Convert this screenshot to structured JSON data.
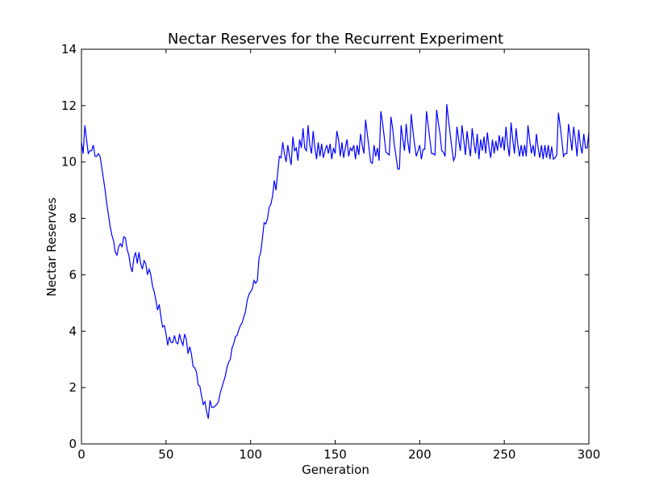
{
  "chart_data": {
    "type": "line",
    "title": "Nectar Reserves for the Recurrent Experiment",
    "xlabel": "Generation",
    "ylabel": "Nectar Reserves",
    "color": "#0000ff",
    "xlim": [
      0,
      300
    ],
    "ylim": [
      0,
      14
    ],
    "xticks": [
      0,
      50,
      100,
      150,
      200,
      250,
      300
    ],
    "yticks": [
      0,
      2,
      4,
      6,
      8,
      10,
      12,
      14
    ],
    "x": [
      0,
      1,
      2,
      3,
      4,
      5,
      6,
      7,
      8,
      9,
      10,
      11,
      12,
      13,
      14,
      15,
      16,
      17,
      18,
      19,
      20,
      21,
      22,
      23,
      24,
      25,
      26,
      27,
      28,
      29,
      30,
      31,
      32,
      33,
      34,
      35,
      36,
      37,
      38,
      39,
      40,
      41,
      42,
      43,
      44,
      45,
      46,
      47,
      48,
      49,
      50,
      51,
      52,
      53,
      54,
      55,
      56,
      57,
      58,
      59,
      60,
      61,
      62,
      63,
      64,
      65,
      66,
      67,
      68,
      69,
      70,
      71,
      72,
      73,
      74,
      75,
      76,
      77,
      78,
      79,
      80,
      81,
      82,
      83,
      84,
      85,
      86,
      87,
      88,
      89,
      90,
      91,
      92,
      93,
      94,
      95,
      96,
      97,
      98,
      99,
      100,
      101,
      102,
      103,
      104,
      105,
      106,
      107,
      108,
      109,
      110,
      111,
      112,
      113,
      114,
      115,
      116,
      117,
      118,
      119,
      120,
      121,
      122,
      123,
      124,
      125,
      126,
      127,
      128,
      129,
      130,
      131,
      132,
      133,
      134,
      135,
      136,
      137,
      138,
      139,
      140,
      141,
      142,
      143,
      144,
      145,
      146,
      147,
      148,
      149,
      150,
      151,
      152,
      153,
      154,
      155,
      156,
      157,
      158,
      159,
      160,
      161,
      162,
      163,
      164,
      165,
      166,
      167,
      168,
      169,
      170,
      171,
      172,
      173,
      174,
      175,
      176,
      177,
      178,
      179,
      180,
      181,
      182,
      183,
      184,
      185,
      186,
      187,
      188,
      189,
      190,
      191,
      192,
      193,
      194,
      195,
      196,
      197,
      198,
      199,
      200,
      201,
      202,
      203,
      204,
      205,
      206,
      207,
      208,
      209,
      210,
      211,
      212,
      213,
      214,
      215,
      216,
      217,
      218,
      219,
      220,
      221,
      222,
      223,
      224,
      225,
      226,
      227,
      228,
      229,
      230,
      231,
      232,
      233,
      234,
      235,
      236,
      237,
      238,
      239,
      240,
      241,
      242,
      243,
      244,
      245,
      246,
      247,
      248,
      249,
      250,
      251,
      252,
      253,
      254,
      255,
      256,
      257,
      258,
      259,
      260,
      261,
      262,
      263,
      264,
      265,
      266,
      267,
      268,
      269,
      270,
      271,
      272,
      273,
      274,
      275,
      276,
      277,
      278,
      279,
      280,
      281,
      282,
      283,
      284,
      285,
      286,
      287,
      288,
      289,
      290,
      291,
      292,
      293,
      294,
      295,
      296,
      297,
      298,
      299,
      300
    ],
    "values": [
      10.7,
      10.3,
      11.3,
      10.8,
      10.3,
      10.4,
      10.4,
      10.6,
      10.2,
      10.2,
      10.3,
      10.2,
      9.8,
      9.4,
      9.0,
      8.5,
      8.1,
      7.7,
      7.4,
      7.2,
      6.8,
      6.7,
      7.0,
      7.1,
      7.0,
      7.35,
      7.3,
      6.9,
      6.7,
      6.3,
      6.1,
      6.6,
      6.8,
      6.4,
      6.8,
      6.4,
      6.2,
      6.5,
      6.4,
      6.0,
      6.2,
      6.0,
      5.6,
      5.4,
      5.1,
      4.75,
      4.95,
      4.5,
      4.15,
      4.2,
      3.9,
      3.5,
      3.8,
      3.6,
      3.6,
      3.85,
      3.6,
      3.55,
      3.9,
      3.65,
      3.5,
      3.9,
      3.7,
      3.2,
      3.45,
      3.2,
      2.75,
      2.7,
      2.55,
      2.1,
      2.05,
      1.7,
      1.4,
      1.5,
      1.15,
      0.9,
      1.55,
      1.3,
      1.3,
      1.35,
      1.4,
      1.5,
      1.8,
      2.0,
      2.2,
      2.4,
      2.7,
      2.9,
      3.0,
      3.4,
      3.55,
      3.8,
      3.85,
      4.05,
      4.2,
      4.3,
      4.5,
      4.7,
      5.1,
      5.3,
      5.4,
      5.5,
      5.8,
      5.7,
      5.8,
      6.6,
      6.8,
      7.3,
      7.85,
      7.8,
      8.0,
      8.4,
      8.5,
      8.8,
      9.35,
      9.0,
      9.6,
      10.2,
      10.15,
      10.7,
      10.3,
      10.0,
      10.6,
      10.2,
      9.9,
      10.9,
      10.4,
      10.5,
      10.05,
      10.8,
      10.5,
      11.2,
      10.5,
      10.4,
      11.3,
      10.6,
      10.3,
      11.1,
      10.5,
      10.1,
      10.7,
      10.2,
      10.65,
      10.15,
      10.4,
      10.6,
      10.3,
      10.65,
      10.1,
      10.5,
      10.3,
      11.1,
      10.8,
      10.2,
      10.7,
      10.15,
      10.5,
      10.8,
      10.2,
      10.5,
      10.4,
      10.6,
      10.1,
      10.6,
      10.25,
      11.0,
      10.6,
      10.3,
      11.5,
      11.0,
      10.5,
      10.0,
      9.95,
      10.6,
      10.2,
      10.5,
      10.05,
      11.8,
      11.4,
      10.9,
      10.35,
      10.3,
      10.25,
      11.6,
      11.2,
      10.6,
      10.2,
      9.75,
      9.75,
      11.3,
      10.8,
      10.4,
      11.35,
      10.7,
      10.3,
      11.7,
      11.1,
      10.6,
      10.2,
      10.4,
      10.6,
      10.1,
      10.45,
      10.45,
      11.8,
      11.3,
      10.8,
      10.3,
      10.3,
      10.25,
      11.85,
      11.4,
      11.0,
      10.4,
      10.35,
      10.2,
      12.05,
      11.5,
      11.0,
      10.5,
      10.05,
      10.2,
      11.25,
      10.8,
      10.4,
      11.3,
      10.8,
      10.25,
      11.1,
      10.6,
      10.2,
      11.2,
      10.7,
      10.3,
      11.0,
      10.1,
      10.8,
      10.4,
      10.9,
      10.3,
      11.05,
      10.5,
      10.15,
      10.8,
      10.3,
      10.75,
      10.4,
      10.95,
      10.5,
      10.9,
      10.4,
      11.25,
      10.6,
      10.2,
      11.4,
      10.8,
      10.3,
      11.2,
      10.6,
      10.2,
      10.6,
      10.2,
      10.6,
      10.2,
      11.3,
      10.8,
      10.3,
      10.6,
      10.2,
      11.0,
      10.5,
      10.15,
      10.6,
      10.1,
      10.6,
      10.15,
      10.6,
      10.1,
      10.55,
      10.1,
      10.15,
      10.25,
      11.75,
      11.3,
      10.8,
      10.2,
      10.3,
      10.3,
      11.35,
      10.9,
      10.4,
      11.25,
      10.8,
      10.2,
      11.15,
      10.6,
      10.3,
      11.0,
      10.5,
      10.5,
      11.05
    ]
  }
}
